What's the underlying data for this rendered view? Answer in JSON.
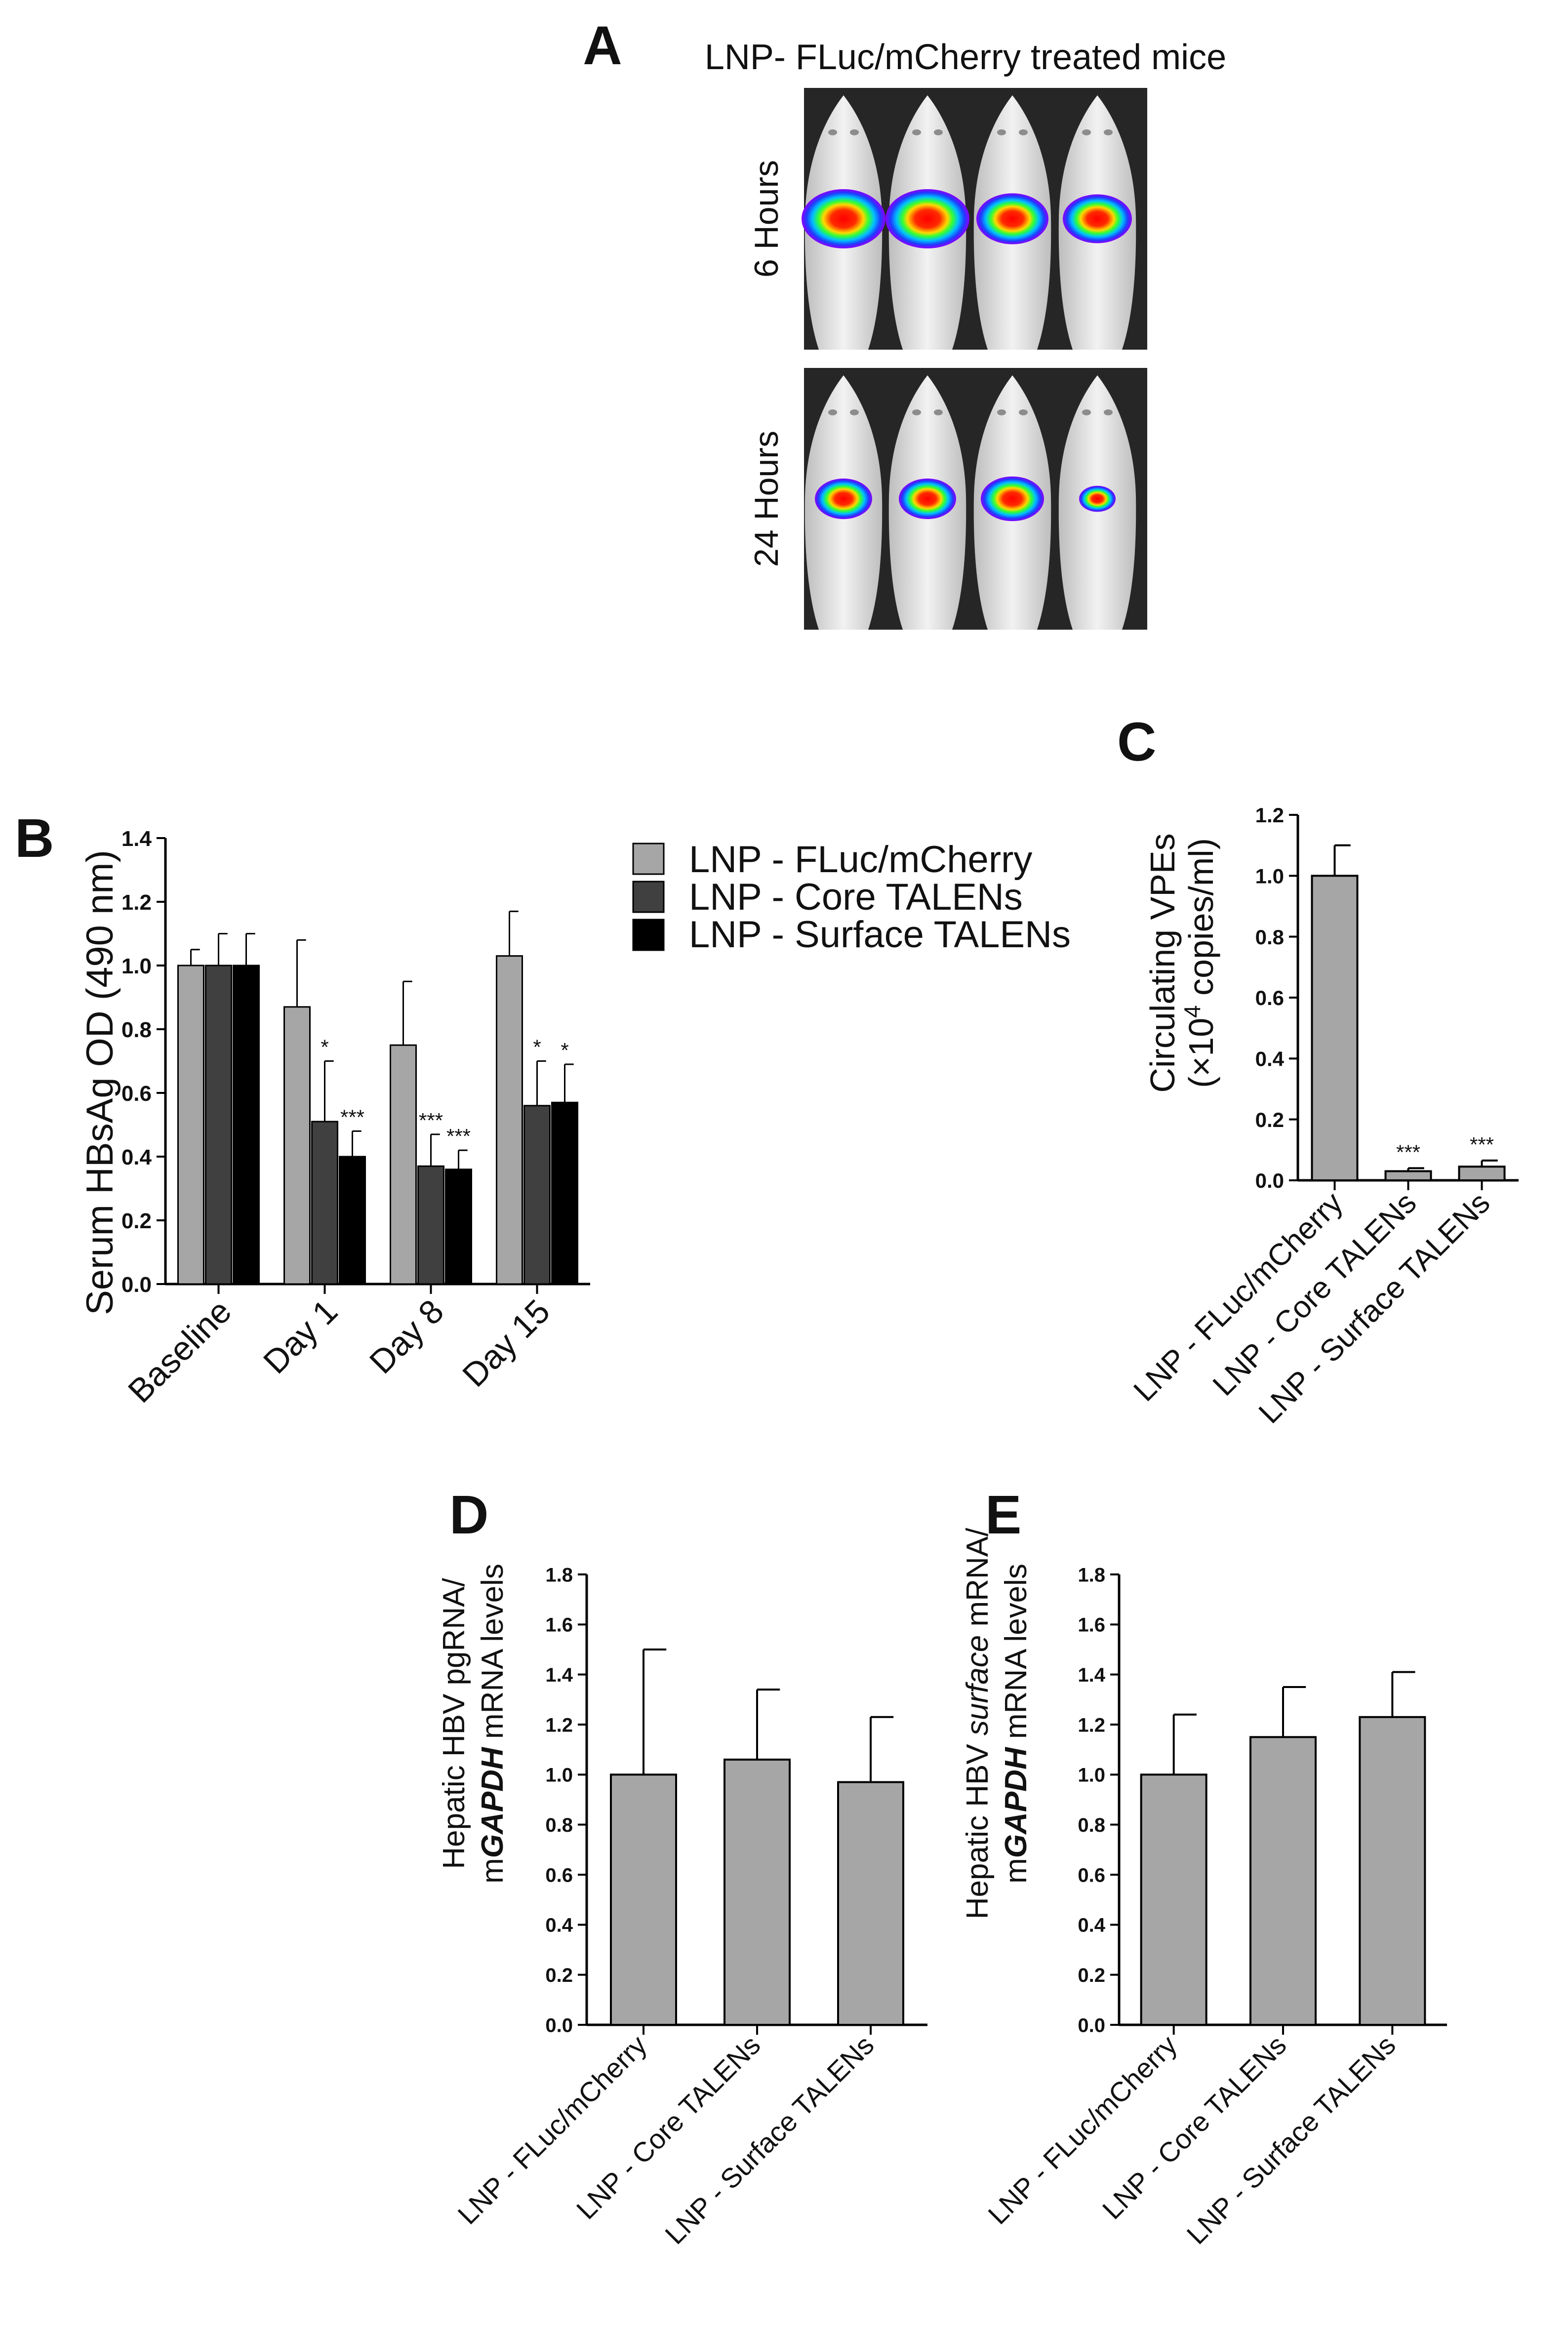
{
  "panels": {
    "A": {
      "letter": "A",
      "title": "LNP- FLuc/mCherry treated mice",
      "rows": [
        {
          "label": "6 Hours",
          "signal_intensity": [
            1.0,
            1.0,
            0.8,
            0.75
          ]
        },
        {
          "label": "24 Hours",
          "signal_intensity": [
            0.55,
            0.55,
            0.65,
            0.2
          ]
        }
      ]
    },
    "B": {
      "letter": "B"
    },
    "C": {
      "letter": "C"
    },
    "D": {
      "letter": "D"
    },
    "E": {
      "letter": "E"
    }
  },
  "legend": {
    "items": [
      {
        "label": "LNP - FLuc/mCherry",
        "color": "#a6a6a6"
      },
      {
        "label": "LNP - Core TALENs",
        "color": "#404040"
      },
      {
        "label": "LNP - Surface TALENs",
        "color": "#000000"
      }
    ]
  },
  "colors": {
    "light_bar": "#a6a6a6",
    "dark_bar": "#404040",
    "black_bar": "#000000",
    "single_bar": "#a6a6a6"
  },
  "chart_data": [
    {
      "id": "B",
      "type": "bar",
      "ylabel": "Serum HBsAg OD (490 nm)",
      "ylim": [
        0,
        1.4
      ],
      "yticks": [
        "0.0",
        "0.2",
        "0.4",
        "0.6",
        "0.8",
        "1.0",
        "1.2",
        "1.4"
      ],
      "categories": [
        "Baseline",
        "Day 1",
        "Day 8",
        "Day 15"
      ],
      "series": [
        {
          "name": "LNP - FLuc/mCherry",
          "values": [
            1.0,
            0.87,
            0.75,
            1.03
          ],
          "errors": [
            0.05,
            0.21,
            0.2,
            0.14
          ],
          "sig": [
            "",
            "",
            "",
            ""
          ]
        },
        {
          "name": "LNP - Core TALENs",
          "values": [
            1.0,
            0.51,
            0.37,
            0.56
          ],
          "errors": [
            0.1,
            0.19,
            0.1,
            0.14
          ],
          "sig": [
            "",
            "*",
            "***",
            "*"
          ]
        },
        {
          "name": "LNP - Surface TALENs",
          "values": [
            1.0,
            0.4,
            0.36,
            0.57
          ],
          "errors": [
            0.1,
            0.08,
            0.06,
            0.12
          ],
          "sig": [
            "",
            "***",
            "***",
            "*"
          ]
        }
      ]
    },
    {
      "id": "C",
      "type": "bar",
      "ylabel_line1": "Circulating VPEs",
      "ylabel_line2_pre": "(×10",
      "ylabel_line2_sup": "4",
      "ylabel_line2_post": " copies/ml)",
      "ylim": [
        0,
        1.2
      ],
      "yticks": [
        "0.0",
        "0.2",
        "0.4",
        "0.6",
        "0.8",
        "1.0",
        "1.2"
      ],
      "categories": [
        "LNP - FLuc/mCherry",
        "LNP - Core TALENs",
        "LNP - Surface TALENs"
      ],
      "values": [
        1.0,
        0.03,
        0.045
      ],
      "errors": [
        0.1,
        0.01,
        0.02
      ],
      "sig": [
        "",
        "***",
        "***"
      ]
    },
    {
      "id": "D",
      "type": "bar",
      "ylabel_line1": "Hepatic HBV pgRNA/",
      "ylabel_line2_pre": "m",
      "ylabel_line2_italic": "GAPDH",
      "ylabel_line2_post": " mRNA levels",
      "ylim": [
        0,
        1.8
      ],
      "yticks": [
        "0.0",
        "0.2",
        "0.4",
        "0.6",
        "0.8",
        "1.0",
        "1.2",
        "1.4",
        "1.6",
        "1.8"
      ],
      "categories": [
        "LNP - FLuc/mCherry",
        "LNP - Core TALENs",
        "LNP - Surface TALENs"
      ],
      "values": [
        1.0,
        1.06,
        0.97
      ],
      "errors": [
        0.5,
        0.28,
        0.26
      ]
    },
    {
      "id": "E",
      "type": "bar",
      "ylabel_line1_pre": "Hepatic HBV ",
      "ylabel_line1_italic": "surface",
      "ylabel_line1_post": " mRNA/",
      "ylabel_line2_pre": "m",
      "ylabel_line2_italic": "GAPDH",
      "ylabel_line2_post": " mRNA levels",
      "ylim": [
        0,
        1.8
      ],
      "yticks": [
        "0.0",
        "0.2",
        "0.4",
        "0.6",
        "0.8",
        "1.0",
        "1.2",
        "1.4",
        "1.6",
        "1.8"
      ],
      "categories": [
        "LNP - FLuc/mCherry",
        "LNP - Core TALENs",
        "LNP - Surface TALENs"
      ],
      "values": [
        1.0,
        1.15,
        1.23
      ],
      "errors": [
        0.24,
        0.2,
        0.18
      ]
    }
  ]
}
